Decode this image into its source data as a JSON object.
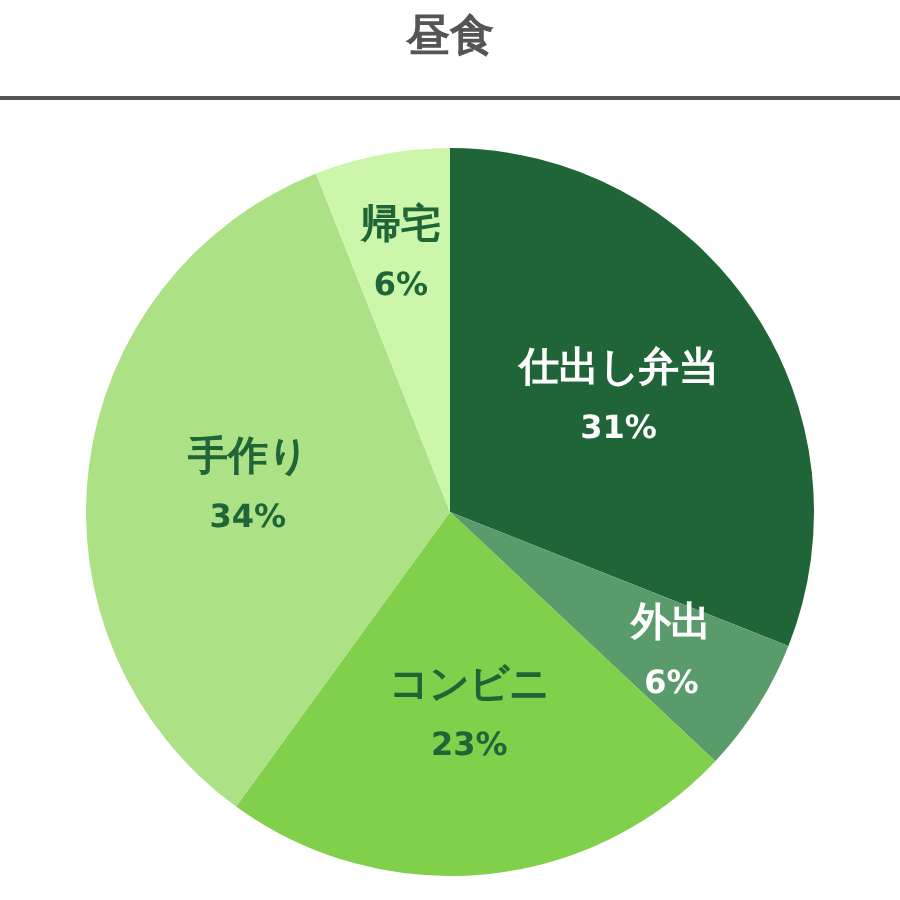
{
  "chart_data": {
    "type": "pie",
    "title": "昼食",
    "categories": [
      "仕出し弁当",
      "外出",
      "コンビニ",
      "手作り",
      "帰宅"
    ],
    "values": [
      31,
      6,
      23,
      34,
      6
    ],
    "value_labels": [
      "31%",
      "6%",
      "23%",
      "34%",
      "6%"
    ],
    "colors": [
      "#1f6537",
      "#5a9b6c",
      "#80d04b",
      "#ace285",
      "#ccf7ab"
    ],
    "legend": false
  }
}
